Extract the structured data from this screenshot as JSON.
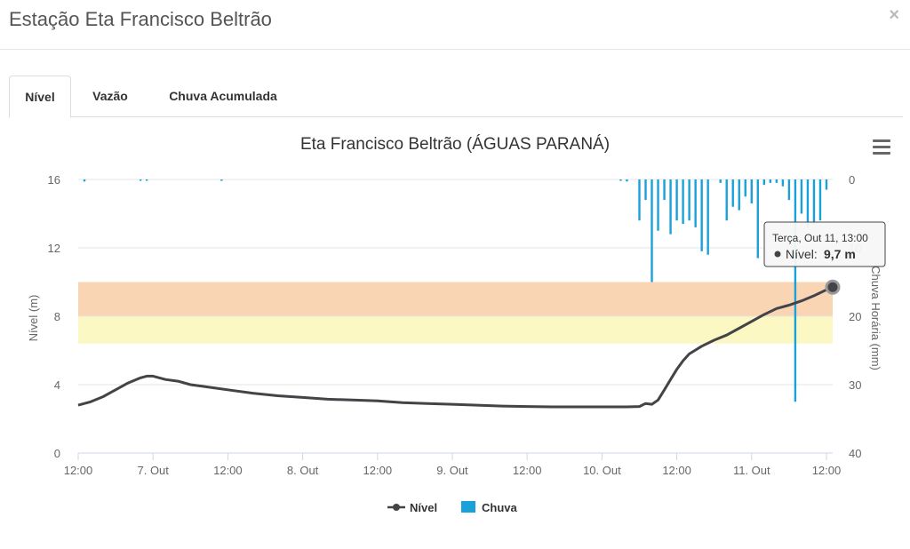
{
  "modal": {
    "title": "Estação Eta Francisco Beltrão",
    "close_label": "×"
  },
  "tabs": [
    {
      "label": "Nível",
      "active": true
    },
    {
      "label": "Vazão",
      "active": false
    },
    {
      "label": "Chuva Acumulada",
      "active": false
    }
  ],
  "menu_icon": "hamburger-menu-icon",
  "colors": {
    "nivel_line": "#434348",
    "chuva_bar": "#1ba1d9",
    "band_orange": "#fad5b4",
    "band_yellow": "#fbf8c4"
  },
  "tooltip": {
    "header": "Terça, Out 11, 13:00",
    "series_label": "Nível:",
    "value": "9,7 m"
  },
  "chart_data": {
    "type": "line",
    "title": "Eta Francisco Beltrão (ÁGUAS PARANÁ)",
    "x_tick_labels": [
      "12:00",
      "7. Out",
      "12:00",
      "8. Out",
      "12:00",
      "9. Out",
      "12:00",
      "10. Out",
      "12:00",
      "11. Out",
      "12:00"
    ],
    "x_ticks_hours": [
      0,
      12,
      24,
      36,
      48,
      60,
      72,
      84,
      96,
      108,
      120
    ],
    "x_range_hours": [
      0,
      121
    ],
    "y_left": {
      "label": "Nível (m)",
      "range": [
        0,
        16
      ],
      "ticks": [
        "0",
        "4",
        "8",
        "12",
        "16"
      ],
      "tick_values": [
        0,
        4,
        8,
        12,
        16
      ]
    },
    "y_right": {
      "label": "Chuva Horária (mm)",
      "range": [
        0,
        40
      ],
      "reversed": true,
      "ticks": [
        "0",
        "10",
        "20",
        "30",
        "40"
      ],
      "tick_values": [
        0,
        10,
        20,
        30,
        40
      ]
    },
    "bands": [
      {
        "from": 8,
        "to": 10,
        "color": "#fad5b4"
      },
      {
        "from": 6.4,
        "to": 8,
        "color": "#fbf8c4"
      }
    ],
    "legend": {
      "position": "bottom-center",
      "items": [
        "Nível",
        "Chuva"
      ]
    },
    "series": [
      {
        "name": "Nível",
        "axis": "left",
        "x_hours": [
          0,
          2,
          4,
          6,
          8,
          10,
          11,
          12,
          14,
          16,
          18,
          20,
          24,
          28,
          32,
          36,
          40,
          44,
          48,
          52,
          56,
          60,
          64,
          68,
          72,
          76,
          80,
          84,
          88,
          90,
          91,
          92,
          93,
          94,
          95,
          96,
          97,
          98,
          100,
          102,
          104,
          106,
          108,
          110,
          112,
          114,
          116,
          118,
          120,
          121
        ],
        "values": [
          2.8,
          3.0,
          3.3,
          3.7,
          4.1,
          4.4,
          4.5,
          4.5,
          4.3,
          4.2,
          4.0,
          3.9,
          3.7,
          3.5,
          3.35,
          3.25,
          3.15,
          3.1,
          3.05,
          2.95,
          2.9,
          2.85,
          2.8,
          2.75,
          2.72,
          2.7,
          2.7,
          2.7,
          2.7,
          2.72,
          2.9,
          2.85,
          3.1,
          3.7,
          4.3,
          4.9,
          5.4,
          5.8,
          6.25,
          6.6,
          6.9,
          7.3,
          7.7,
          8.1,
          8.45,
          8.65,
          8.9,
          9.2,
          9.55,
          9.7
        ]
      },
      {
        "name": "Chuva",
        "axis": "right",
        "type": "column",
        "x_hours": [
          1,
          10,
          11,
          23,
          87,
          88,
          90,
          91,
          92,
          93,
          94,
          95,
          96,
          97,
          98,
          99,
          100,
          101,
          103,
          104,
          105,
          106,
          107,
          108,
          109,
          110,
          111,
          112,
          113,
          114,
          115,
          116,
          117,
          118,
          119,
          120
        ],
        "values": [
          0.3,
          0.2,
          0.2,
          0.2,
          0.2,
          0.3,
          6,
          3,
          15,
          7.5,
          3,
          8,
          6,
          6.5,
          6,
          7,
          10.5,
          11,
          0.5,
          6,
          4,
          4.5,
          2.5,
          3.5,
          11.5,
          0.8,
          0.5,
          0.5,
          1,
          3,
          32.5,
          5,
          7,
          6.5,
          6,
          1.5
        ]
      }
    ],
    "highlight_point": {
      "x_hour": 121,
      "value": 9.7
    }
  }
}
